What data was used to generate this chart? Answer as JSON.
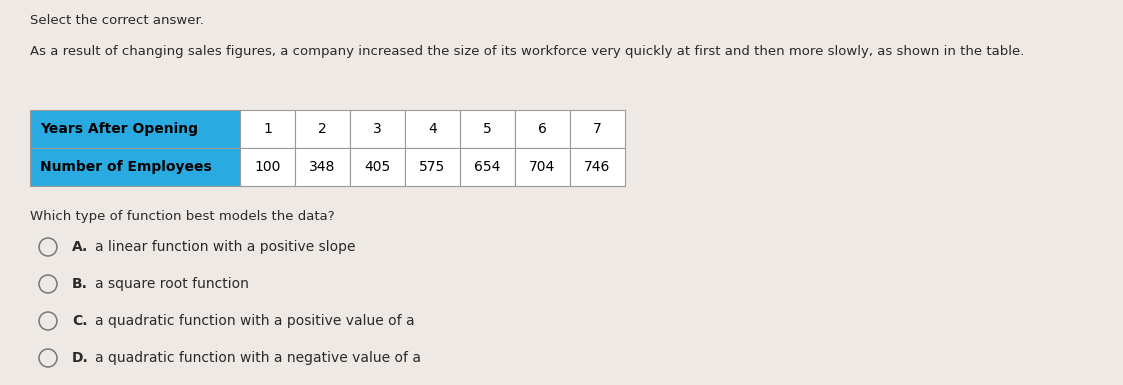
{
  "title_instruction": "Select the correct answer.",
  "question_text": "As a result of changing sales figures, a company increased the size of its workforce very quickly at first and then more slowly, as shown in the table.",
  "table_header": [
    "Years After Opening",
    "1",
    "2",
    "3",
    "4",
    "5",
    "6",
    "7"
  ],
  "table_row": [
    "Number of Employees",
    "100",
    "348",
    "405",
    "575",
    "654",
    "704",
    "746"
  ],
  "sub_question": "Which type of function best models the data?",
  "options": [
    {
      "label": "A.",
      "text": "a linear function with a positive slope"
    },
    {
      "label": "B.",
      "text": "a square root function"
    },
    {
      "label": "C.",
      "text": "a quadratic function with a positive value of a"
    },
    {
      "label": "D.",
      "text": "a quadratic function with a negative value of a"
    }
  ],
  "header_bg_color": "#29ABE2",
  "table_border_color": "#999999",
  "background_color": "#eee9e4",
  "text_color": "#2a2a2a",
  "title_fontsize": 9.5,
  "question_fontsize": 9.5,
  "table_label_fontsize": 10,
  "table_data_fontsize": 10,
  "subq_fontsize": 9.5,
  "option_label_fontsize": 10,
  "option_text_fontsize": 10
}
